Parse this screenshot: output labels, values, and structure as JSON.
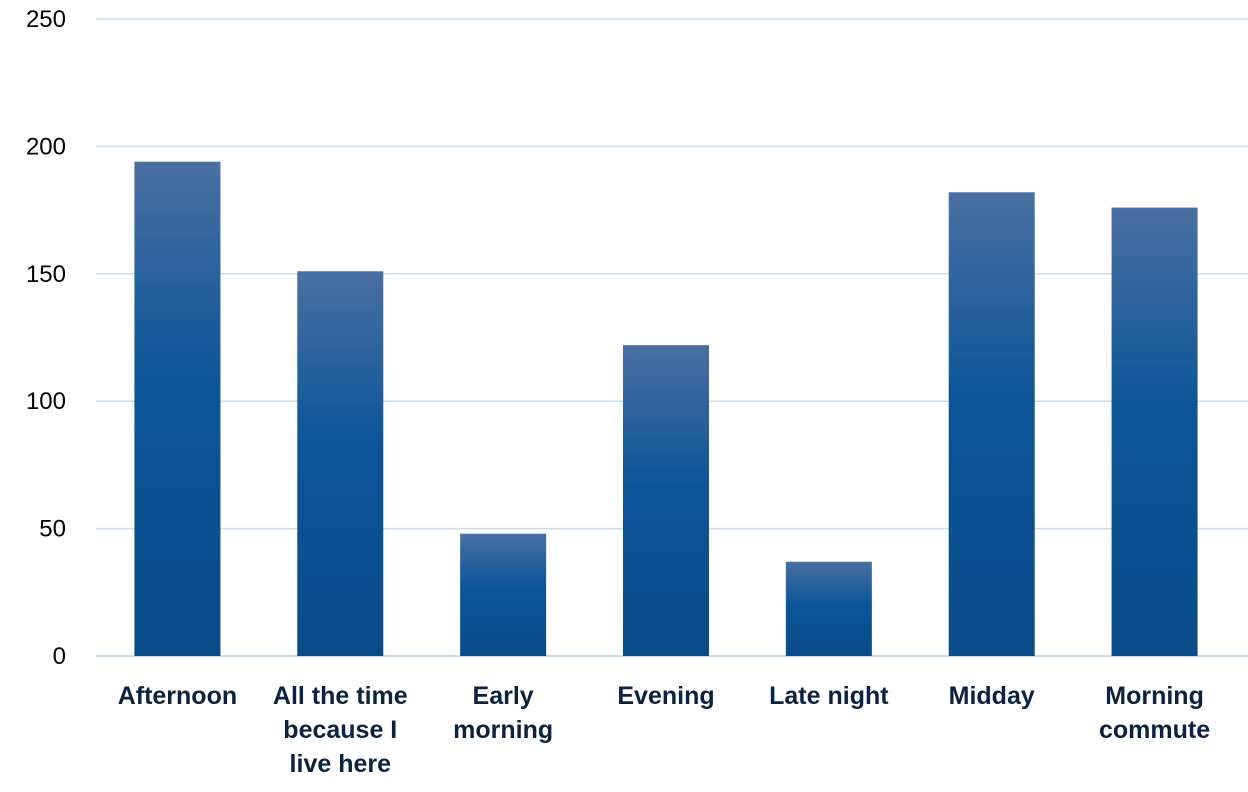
{
  "chart_data": {
    "type": "bar",
    "title": "",
    "xlabel": "",
    "ylabel": "",
    "categories": [
      "Afternoon",
      "All the time because I live here",
      "Early morning",
      "Evening",
      "Late night",
      "Midday",
      "Morning commute"
    ],
    "values": [
      194,
      151,
      48,
      122,
      37,
      182,
      176
    ],
    "ylim": [
      0,
      250
    ],
    "yticks": [
      0,
      50,
      100,
      150,
      200,
      250
    ],
    "grid": true,
    "legend": "none",
    "colors": {
      "bar_top": "#4a6fa1",
      "bar_mid": "#0b5597",
      "bar_bottom": "#0a4b88",
      "gridline": "#c9dced",
      "tick_label": "#0b2341"
    }
  }
}
